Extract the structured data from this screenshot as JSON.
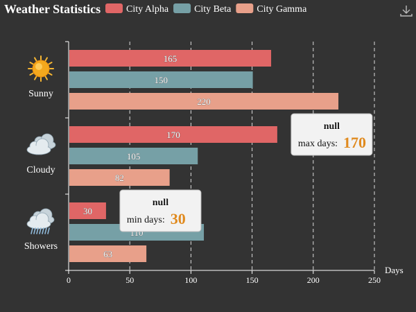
{
  "toolbar": {
    "download_icon": "download-icon"
  },
  "icons": {
    "Sunny": "sun-icon",
    "Cloudy": "cloud-icon",
    "Showers": "showers-icon"
  },
  "chart_data": {
    "type": "bar",
    "orientation": "horizontal",
    "title": "Weather Statistics",
    "categories": [
      "Sunny",
      "Cloudy",
      "Showers"
    ],
    "series": [
      {
        "name": "City Alpha",
        "values": [
          165,
          170,
          30
        ],
        "color": "#e06666"
      },
      {
        "name": "City Beta",
        "values": [
          150,
          105,
          110
        ],
        "color": "#76a0a6"
      },
      {
        "name": "City Gamma",
        "values": [
          220,
          82,
          63
        ],
        "color": "#e8a08a"
      }
    ],
    "xlabel": "Days",
    "ylabel": "",
    "xlim": [
      0,
      250
    ],
    "xticks": [
      0,
      50,
      100,
      150,
      200,
      250
    ],
    "grid": "vertical-dashed",
    "legend": "top",
    "data_labels": true,
    "annotations": [
      {
        "title": "null",
        "label": "max days:",
        "value": "170",
        "target_series": "City Alpha",
        "target_category": "Cloudy"
      },
      {
        "title": "null",
        "label": "min days:",
        "value": "30",
        "target_series": "City Alpha",
        "target_category": "Showers"
      }
    ]
  }
}
